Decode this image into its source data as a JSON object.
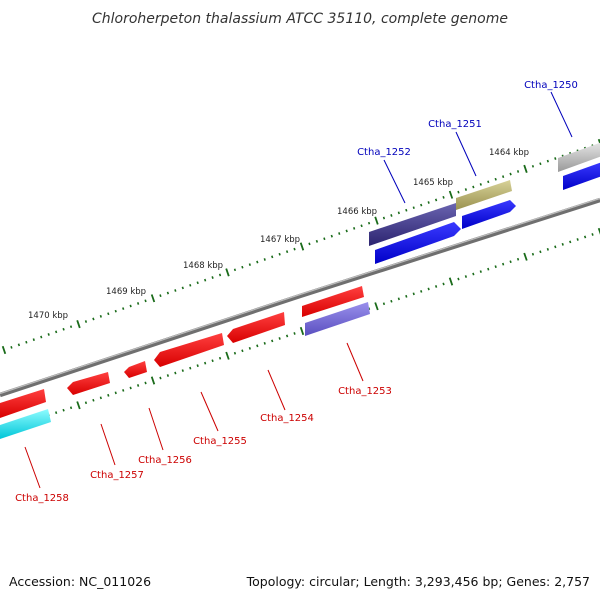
{
  "title": "Chloroherpeton thalassium ATCC 35110, complete genome",
  "footer": {
    "accession": "Accession: NC_011026",
    "summary": "Topology: circular; Length: 3,293,456 bp; Genes: 2,757"
  },
  "colors": {
    "forward_label": "#0000bb",
    "reverse_label": "#cc0000",
    "ticks": "#1a6b1a",
    "backbone": "#888888"
  },
  "ruler": [
    {
      "label": "1464 kbp"
    },
    {
      "label": "1465 kbp"
    },
    {
      "label": "1466 kbp"
    },
    {
      "label": "1467 kbp"
    },
    {
      "label": "1468 kbp"
    },
    {
      "label": "1469 kbp"
    },
    {
      "label": "1470 kbp"
    }
  ],
  "genes": [
    {
      "name": "Ctha_1250",
      "strand": "+",
      "labeled": true
    },
    {
      "name": "Ctha_1251",
      "strand": "+",
      "labeled": true
    },
    {
      "name": "Ctha_1252",
      "strand": "+",
      "labeled": true
    },
    {
      "name": "Ctha_1253",
      "strand": "-",
      "labeled": true
    },
    {
      "name": "Ctha_1254",
      "strand": "-",
      "labeled": true
    },
    {
      "name": "Ctha_1255",
      "strand": "-",
      "labeled": true
    },
    {
      "name": "Ctha_1256",
      "strand": "-",
      "labeled": true
    },
    {
      "name": "Ctha_1257",
      "strand": "-",
      "labeled": true
    },
    {
      "name": "Ctha_1258",
      "strand": "-",
      "labeled": true
    }
  ]
}
